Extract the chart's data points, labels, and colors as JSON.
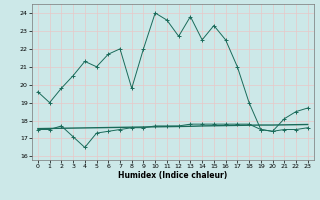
{
  "xlabel": "Humidex (Indice chaleur)",
  "bg_color": "#cce8e8",
  "grid_color": "#e8c8c8",
  "line_color": "#1a6b5a",
  "xlim": [
    -0.5,
    23.5
  ],
  "ylim": [
    15.8,
    24.5
  ],
  "xticks": [
    0,
    1,
    2,
    3,
    4,
    5,
    6,
    7,
    8,
    9,
    10,
    11,
    12,
    13,
    14,
    15,
    16,
    17,
    18,
    19,
    20,
    21,
    22,
    23
  ],
  "yticks": [
    16,
    17,
    18,
    19,
    20,
    21,
    22,
    23,
    24
  ],
  "line1_x": [
    0,
    1,
    2,
    3,
    4,
    5,
    6,
    7,
    8,
    9,
    10,
    11,
    12,
    13,
    14,
    15,
    16,
    17,
    18,
    19,
    20,
    21,
    22,
    23
  ],
  "line1_y": [
    19.6,
    19.0,
    19.8,
    20.5,
    21.3,
    21.0,
    21.7,
    22.0,
    19.8,
    22.0,
    24.0,
    23.6,
    22.7,
    23.8,
    22.5,
    23.3,
    22.5,
    21.0,
    19.0,
    17.5,
    17.4,
    18.1,
    18.5,
    18.7
  ],
  "line2_x": [
    0,
    1,
    2,
    3,
    4,
    5,
    6,
    7,
    8,
    9,
    10,
    11,
    12,
    13,
    14,
    15,
    16,
    17,
    18,
    19,
    20,
    21,
    22,
    23
  ],
  "line2_y": [
    17.5,
    17.5,
    17.7,
    17.1,
    16.5,
    17.3,
    17.4,
    17.5,
    17.6,
    17.6,
    17.7,
    17.7,
    17.7,
    17.8,
    17.8,
    17.8,
    17.8,
    17.8,
    17.8,
    17.5,
    17.4,
    17.5,
    17.5,
    17.6
  ],
  "line3_x": [
    0,
    1,
    2,
    3,
    4,
    5,
    6,
    7,
    8,
    9,
    10,
    11,
    12,
    13,
    14,
    15,
    16,
    17,
    18,
    19,
    20,
    21,
    22,
    23
  ],
  "line3_y": [
    17.55,
    17.56,
    17.57,
    17.58,
    17.59,
    17.6,
    17.61,
    17.62,
    17.63,
    17.64,
    17.65,
    17.66,
    17.67,
    17.68,
    17.7,
    17.71,
    17.72,
    17.73,
    17.74,
    17.75,
    17.75,
    17.76,
    17.77,
    17.78
  ]
}
